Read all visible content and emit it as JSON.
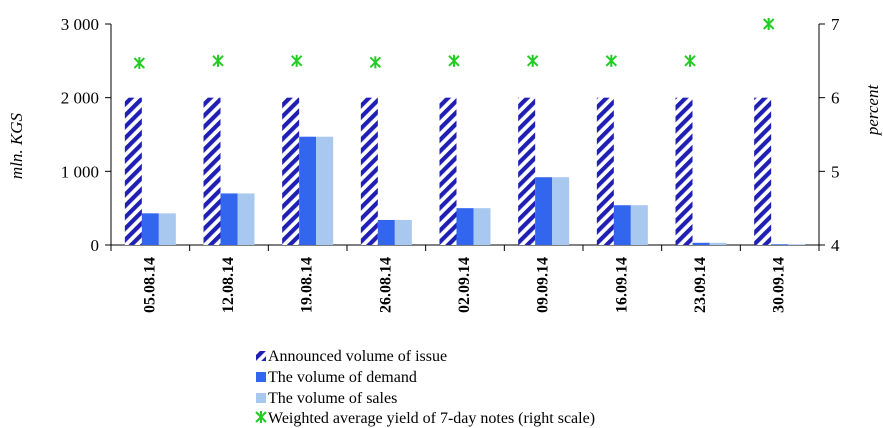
{
  "chart_data": {
    "type": "bar",
    "categories": [
      "05.08.14",
      "12.08.14",
      "19.08.14",
      "26.08.14",
      "02.09.14",
      "09.09.14",
      "16.09.14",
      "23.09.14",
      "30.09.14"
    ],
    "series": [
      {
        "name": "Announced volume of issue",
        "axis": "left",
        "kind": "bar",
        "pattern": "diagonal-stripes",
        "color": "#1f1fb4",
        "values": [
          2000,
          2000,
          2000,
          2000,
          2000,
          2000,
          2000,
          2000,
          2000
        ]
      },
      {
        "name": "The volume of demand",
        "axis": "left",
        "kind": "bar",
        "color": "#3366ee",
        "values": [
          430,
          700,
          1470,
          340,
          500,
          920,
          540,
          30,
          10
        ]
      },
      {
        "name": "The volume of sales",
        "axis": "left",
        "kind": "bar",
        "color": "#a9c8f0",
        "values": [
          430,
          700,
          1470,
          340,
          500,
          920,
          540,
          30,
          10
        ]
      },
      {
        "name": "Weighted average yield of 7-day notes (right scale)",
        "axis": "right",
        "kind": "marker",
        "color": "#22cc22",
        "values": [
          6.47,
          6.5,
          6.5,
          6.48,
          6.5,
          6.5,
          6.5,
          6.5,
          7.0
        ]
      }
    ],
    "ylabel": "mln. KGS",
    "y2label": "percent",
    "ylim": [
      0,
      3000
    ],
    "y2lim": [
      4,
      7
    ],
    "yticks": [
      "0",
      "1 000",
      "2 000",
      "3 000"
    ],
    "y2ticks": [
      "4",
      "5",
      "6",
      "7"
    ],
    "legend_position": "bottom",
    "grid": false
  }
}
